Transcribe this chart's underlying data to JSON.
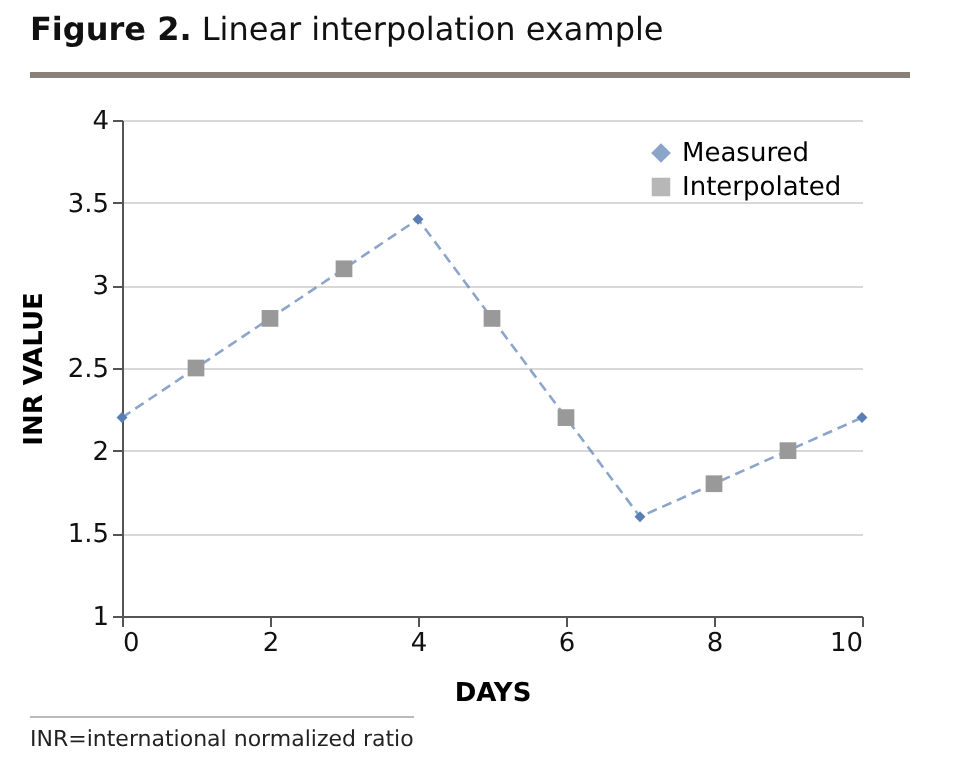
{
  "chart_data": {
    "type": "line",
    "title": "Figure 2. Linear interpolation example",
    "xlabel": "DAYS",
    "ylabel": "INR VALUE",
    "series": [
      {
        "name": "Measured",
        "color": "#5b7fb5",
        "x": [
          0,
          4,
          7,
          10
        ],
        "values": [
          2.2,
          3.4,
          1.6,
          2.2
        ],
        "marker": "diamond",
        "line_style": "dashed"
      },
      {
        "name": "Interpolated",
        "type": "scatter",
        "color": "#999999",
        "x": [
          1,
          2,
          3,
          5,
          6,
          8,
          9
        ],
        "values": [
          2.5,
          2.8,
          3.1,
          2.8,
          2.2,
          1.8,
          2.0
        ],
        "marker": "square"
      }
    ],
    "xlim": [
      0,
      10
    ],
    "xticks": [
      0,
      2,
      4,
      6,
      8,
      10
    ],
    "ylim": [
      1,
      4
    ],
    "yticks": [
      1,
      1.5,
      2,
      2.5,
      3,
      3.5,
      4
    ],
    "grid": "y",
    "legend": "top right",
    "annotations": [
      "INR=international normalized ratio"
    ]
  }
}
